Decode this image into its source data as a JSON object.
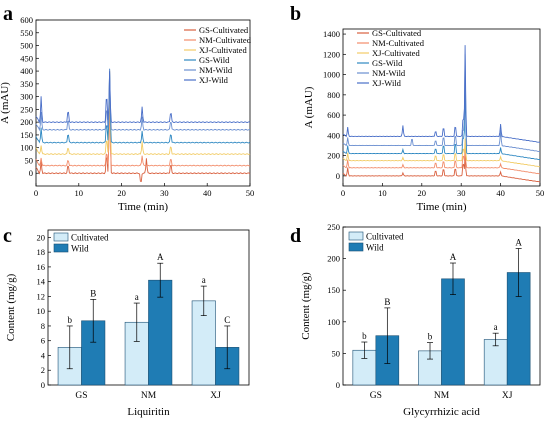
{
  "chart_data": [
    {
      "panel": "a",
      "type": "line",
      "xlabel": "Time (min)",
      "ylabel": "A (mAU)",
      "xlim": [
        0,
        50
      ],
      "ylim": [
        -50,
        600
      ],
      "xticks": [
        0,
        10,
        20,
        30,
        40,
        50
      ],
      "yticks": [
        0,
        50,
        100,
        150,
        200,
        250,
        300,
        350,
        400,
        450,
        500,
        550,
        600
      ],
      "legend_position": "top-right",
      "series": [
        {
          "name": "GS-Cultivated",
          "color": "#d9603f",
          "offset": 0,
          "peaks": [
            [
              1.2,
              45
            ],
            [
              7.5,
              35
            ],
            [
              16.5,
              80
            ],
            [
              17.2,
              400
            ],
            [
              24.5,
              -45
            ],
            [
              25.8,
              60
            ],
            [
              31.5,
              40
            ]
          ]
        },
        {
          "name": "NM-Cultivated",
          "color": "#f28c6a",
          "offset": 30,
          "peaks": [
            [
              1.2,
              30
            ],
            [
              7.5,
              25
            ],
            [
              16.5,
              60
            ],
            [
              17.2,
              250
            ],
            [
              24.8,
              40
            ],
            [
              31.5,
              30
            ]
          ]
        },
        {
          "name": "XJ-Cultivated",
          "color": "#f2cc66",
          "offset": 75,
          "peaks": [
            [
              1.2,
              35
            ],
            [
              7.5,
              30
            ],
            [
              16.5,
              70
            ],
            [
              17.2,
              330
            ],
            [
              24.8,
              50
            ],
            [
              31.5,
              35
            ]
          ]
        },
        {
          "name": "GS-Wild",
          "color": "#2e88c2",
          "offset": 120,
          "peaks": [
            [
              1.2,
              60
            ],
            [
              7.5,
              40
            ],
            [
              16.5,
              90
            ],
            [
              17.2,
              290
            ],
            [
              24.8,
              45
            ],
            [
              31.5,
              40
            ]
          ]
        },
        {
          "name": "NM-Wild",
          "color": "#6b8fd0",
          "offset": 170,
          "peaks": [
            [
              1.2,
              70
            ],
            [
              7.5,
              45
            ],
            [
              16.5,
              100
            ],
            [
              17.2,
              240
            ],
            [
              24.8,
              50
            ],
            [
              31.5,
              40
            ]
          ]
        },
        {
          "name": "XJ-Wild",
          "color": "#4a6fc8",
          "offset": 200,
          "peaks": [
            [
              1.2,
              100
            ],
            [
              7.5,
              50
            ],
            [
              16.5,
              120
            ],
            [
              17.2,
              200
            ],
            [
              24.8,
              60
            ],
            [
              31.5,
              45
            ]
          ]
        }
      ]
    },
    {
      "panel": "b",
      "type": "line",
      "xlabel": "Time (min)",
      "ylabel": "A (mAU)",
      "xlim": [
        0,
        50
      ],
      "ylim": [
        -100,
        1450
      ],
      "xticks": [
        0,
        10,
        20,
        30,
        40,
        50
      ],
      "yticks": [
        0,
        200,
        400,
        600,
        800,
        1000,
        1200,
        1400
      ],
      "legend_position": "top-left",
      "series": [
        {
          "name": "GS-Cultivated",
          "color": "#d9603f",
          "offset": 0,
          "peaks": [
            [
              1.2,
              80
            ],
            [
              15.2,
              30
            ],
            [
              23.5,
              60
            ],
            [
              25.5,
              80
            ],
            [
              28.5,
              90
            ],
            [
              30.5,
              150
            ],
            [
              31.0,
              200
            ],
            [
              40,
              40
            ]
          ]
        },
        {
          "name": "NM-Cultivated",
          "color": "#f28c6a",
          "offset": 80,
          "peaks": [
            [
              1.2,
              80
            ],
            [
              15.2,
              30
            ],
            [
              23.5,
              60
            ],
            [
              25.5,
              80
            ],
            [
              28.5,
              90
            ],
            [
              30.5,
              150
            ],
            [
              31.0,
              200
            ],
            [
              40,
              40
            ]
          ]
        },
        {
          "name": "XJ-Cultivated",
          "color": "#f2cc66",
          "offset": 150,
          "peaks": [
            [
              1.2,
              80
            ],
            [
              15.2,
              30
            ],
            [
              23.5,
              60
            ],
            [
              25.5,
              80
            ],
            [
              28.5,
              90
            ],
            [
              30.5,
              150
            ],
            [
              31.0,
              220
            ],
            [
              40,
              40
            ]
          ]
        },
        {
          "name": "GS-Wild",
          "color": "#2e88c2",
          "offset": 220,
          "peaks": [
            [
              1.2,
              80
            ],
            [
              15.2,
              40
            ],
            [
              23.5,
              60
            ],
            [
              25.5,
              100
            ],
            [
              28.5,
              120
            ],
            [
              30.5,
              200
            ],
            [
              31.0,
              700
            ],
            [
              40,
              60
            ]
          ]
        },
        {
          "name": "NM-Wild",
          "color": "#6b8fd0",
          "offset": 300,
          "peaks": [
            [
              1.2,
              80
            ],
            [
              17.5,
              80
            ],
            [
              23.5,
              60
            ],
            [
              25.5,
              100
            ],
            [
              28.5,
              120
            ],
            [
              30.5,
              200
            ],
            [
              31.0,
              900
            ],
            [
              40,
              150
            ]
          ]
        },
        {
          "name": "XJ-Wild",
          "color": "#4a6fc8",
          "offset": 390,
          "peaks": [
            [
              1.2,
              90
            ],
            [
              15.2,
              110
            ],
            [
              23.5,
              60
            ],
            [
              25.5,
              100
            ],
            [
              28.5,
              120
            ],
            [
              30.5,
              220
            ],
            [
              31.0,
              900
            ],
            [
              40,
              120
            ]
          ]
        }
      ]
    },
    {
      "panel": "c",
      "type": "bar",
      "xlabel": "Liquiritin",
      "ylabel": "Content (mg/g)",
      "ylim": [
        0,
        21
      ],
      "yticks": [
        0,
        2,
        4,
        6,
        8,
        10,
        12,
        14,
        16,
        18,
        20
      ],
      "categories": [
        "GS",
        "NM",
        "XJ"
      ],
      "legend_position": "top-left",
      "series": [
        {
          "name": "Cultivated",
          "color": "#d3ecf8",
          "values": [
            5.1,
            8.5,
            11.4
          ],
          "errors": [
            2.9,
            2.6,
            2.0
          ],
          "letters": [
            "b",
            "a",
            "a"
          ]
        },
        {
          "name": "Wild",
          "color": "#1f7cb4",
          "values": [
            8.7,
            14.2,
            5.1
          ],
          "errors": [
            2.9,
            2.3,
            2.9
          ],
          "letters": [
            "B",
            "A",
            "C"
          ]
        }
      ]
    },
    {
      "panel": "d",
      "type": "bar",
      "xlabel": "Glycyrrhizic acid",
      "ylabel": "Content (mg/g)",
      "ylim": [
        0,
        250
      ],
      "yticks": [
        0,
        50,
        100,
        150,
        200,
        250
      ],
      "categories": [
        "GS",
        "NM",
        "XJ"
      ],
      "legend_position": "top-left",
      "series": [
        {
          "name": "Cultivated",
          "color": "#d3ecf8",
          "values": [
            55,
            54,
            72
          ],
          "errors": [
            13,
            13,
            10
          ],
          "letters": [
            "b",
            "b",
            "a"
          ]
        },
        {
          "name": "Wild",
          "color": "#1f7cb4",
          "values": [
            78,
            168,
            178
          ],
          "errors": [
            44,
            25,
            38
          ],
          "letters": [
            "B",
            "A",
            "A"
          ]
        }
      ]
    }
  ],
  "panel_labels": [
    "a",
    "b",
    "c",
    "d"
  ]
}
